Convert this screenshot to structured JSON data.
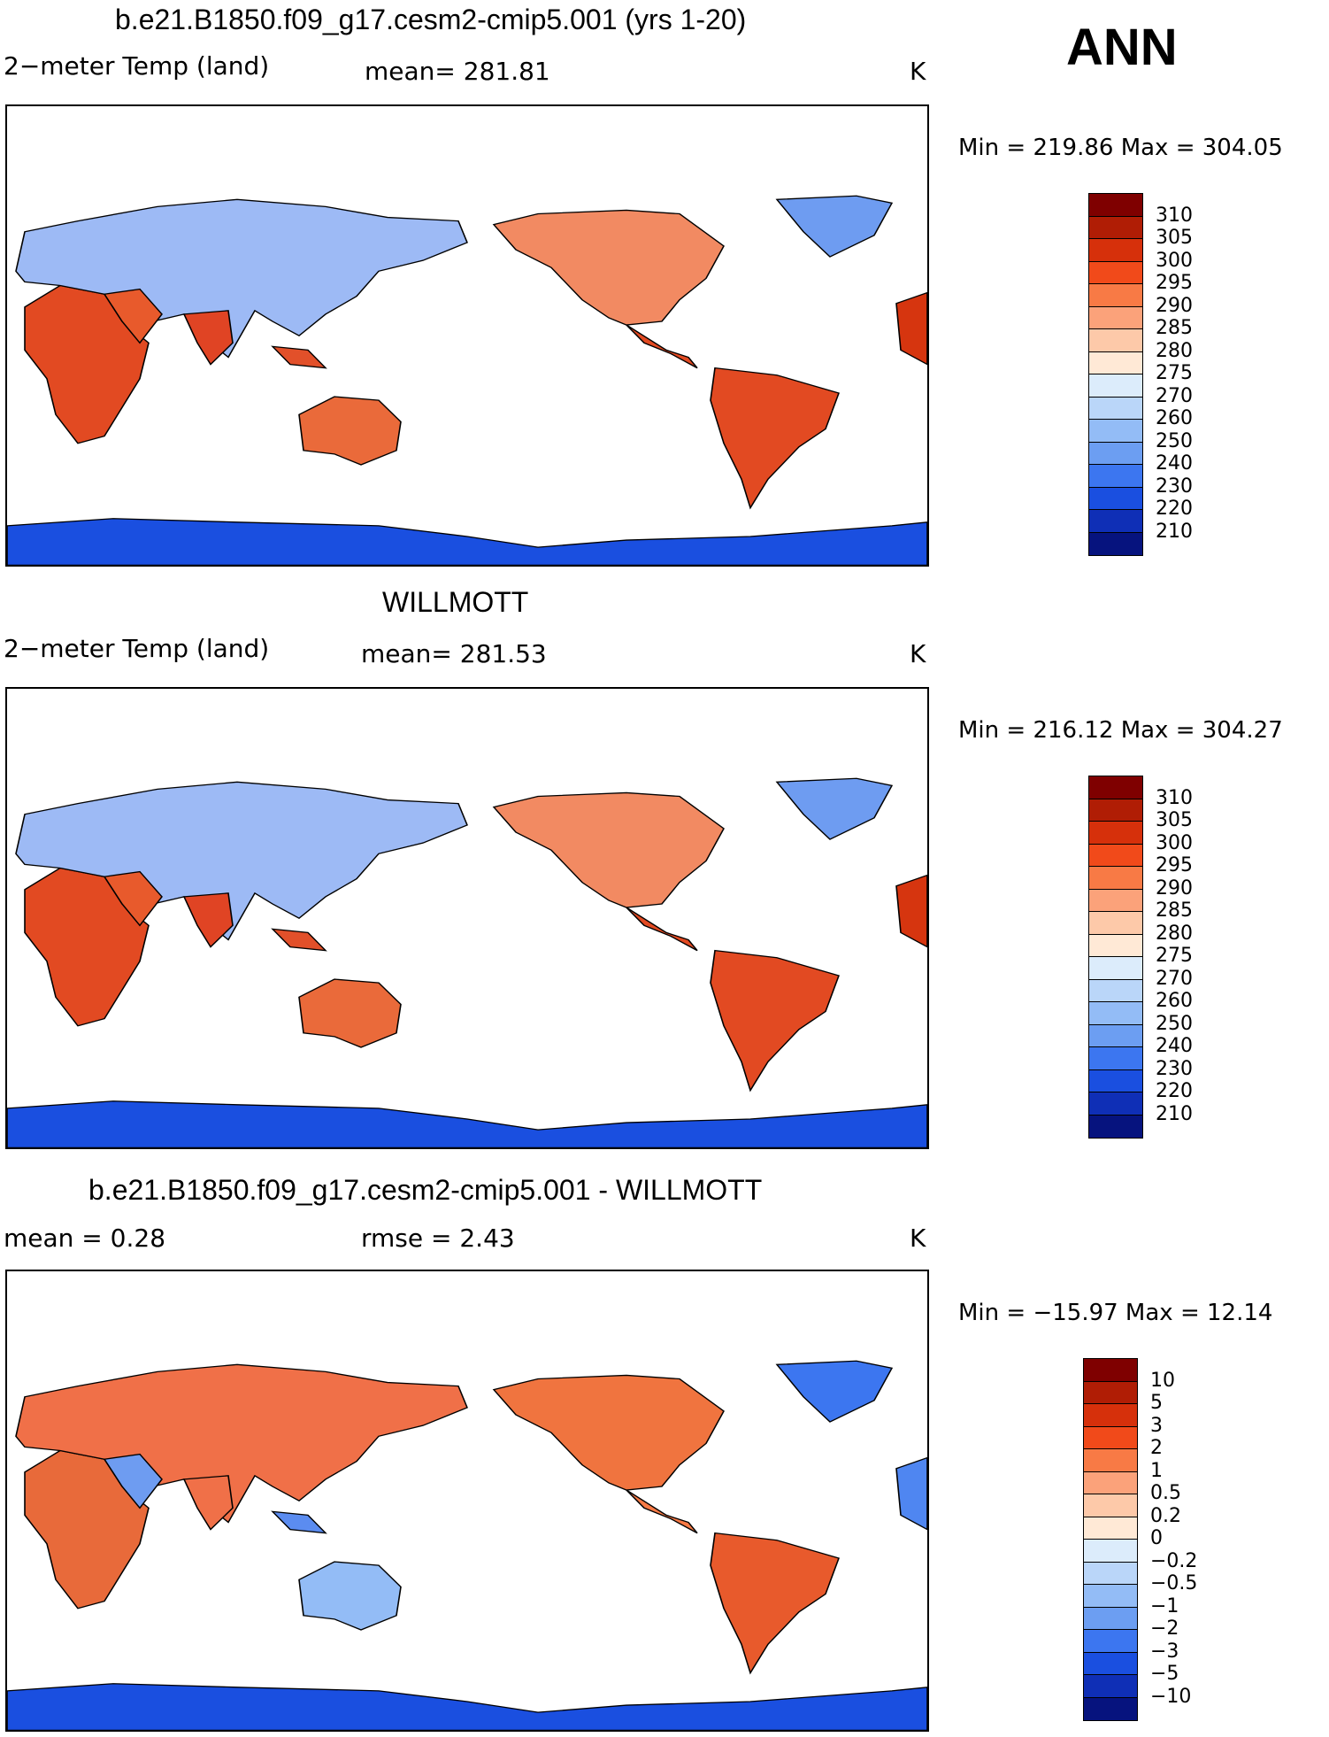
{
  "season": "ANN",
  "panels": [
    {
      "title": "b.e21.B1850.f09_g17.cesm2-cmip5.001 (yrs 1-20)",
      "left_label": "2−meter Temp (land)",
      "center_label": "mean= 281.81",
      "units": "K",
      "minmax": "Min = 219.86 Max = 304.05",
      "levels": [
        "310",
        "305",
        "300",
        "295",
        "290",
        "285",
        "280",
        "275",
        "270",
        "260",
        "250",
        "240",
        "230",
        "220",
        "210"
      ],
      "colors": [
        "#7f0000",
        "#b01d05",
        "#d6300b",
        "#f14a1a",
        "#f87a45",
        "#fba27a",
        "#fdc9a9",
        "#ffe9d6",
        "#dcecfb",
        "#bad6f9",
        "#93bcf6",
        "#6c9ef2",
        "#3c76f0",
        "#1a4fe0",
        "#0f2fb6",
        "#06137e"
      ]
    },
    {
      "title": "WILLMOTT",
      "left_label": "2−meter Temp (land)",
      "center_label": "mean= 281.53",
      "units": "K",
      "minmax": "Min = 216.12 Max = 304.27",
      "levels": [
        "310",
        "305",
        "300",
        "295",
        "290",
        "285",
        "280",
        "275",
        "270",
        "260",
        "250",
        "240",
        "230",
        "220",
        "210"
      ],
      "colors": [
        "#7f0000",
        "#b01d05",
        "#d6300b",
        "#f14a1a",
        "#f87a45",
        "#fba27a",
        "#fdc9a9",
        "#ffe9d6",
        "#dcecfb",
        "#bad6f9",
        "#93bcf6",
        "#6c9ef2",
        "#3c76f0",
        "#1a4fe0",
        "#0f2fb6",
        "#06137e"
      ]
    },
    {
      "title": "b.e21.B1850.f09_g17.cesm2-cmip5.001 - WILLMOTT",
      "left_label": "mean =    0.28",
      "center_label": "rmse =    2.43",
      "units": "K",
      "minmax": "Min = −15.97 Max =   12.14",
      "levels": [
        "10",
        "5",
        "3",
        "2",
        "1",
        "0.5",
        "0.2",
        "0",
        "−0.2",
        "−0.5",
        "−1",
        "−2",
        "−3",
        "−5",
        "−10"
      ],
      "colors": [
        "#7f0000",
        "#b01d05",
        "#d6300b",
        "#f14a1a",
        "#f87a45",
        "#fba27a",
        "#fdc9a9",
        "#ffe9d6",
        "#dcecfb",
        "#bad6f9",
        "#93bcf6",
        "#6c9ef2",
        "#3c76f0",
        "#1a4fe0",
        "#0f2fb6",
        "#06137e"
      ]
    }
  ]
}
